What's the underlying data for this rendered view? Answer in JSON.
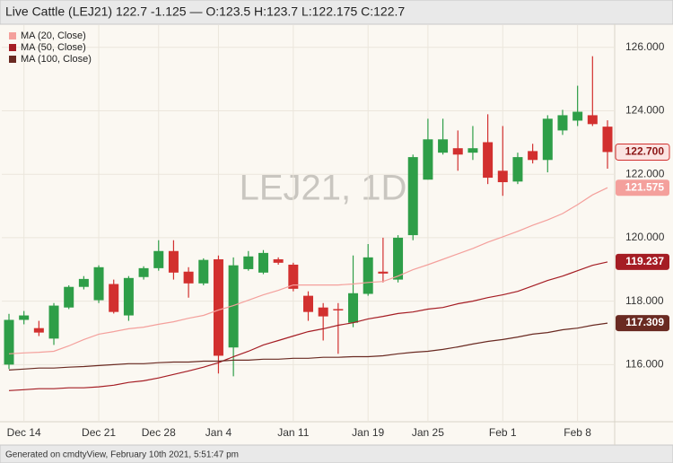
{
  "chart_data": {
    "type": "candlestick",
    "title": "Live Cattle (LEJ21) 122.7 -1.125 — O:123.5 H:123.7 L:122.175 C:122.7",
    "watermark": "LEJ21, 1D",
    "footer": "Generated on cmdtyView, February 10th 2021, 5:51:47 pm",
    "categories": [
      null,
      "Dec 14",
      null,
      null,
      null,
      null,
      "Dec 21",
      null,
      null,
      null,
      "Dec 28",
      null,
      null,
      null,
      "Jan 4",
      null,
      null,
      null,
      null,
      "Jan 11",
      null,
      null,
      null,
      null,
      "Jan 19",
      null,
      null,
      null,
      "Jan 25",
      null,
      null,
      null,
      null,
      "Feb 1",
      null,
      null,
      null,
      null,
      "Feb 8",
      null,
      null
    ],
    "ohlc": {
      "open": [
        116.0,
        117.41,
        117.15,
        116.82,
        117.8,
        118.45,
        118.03,
        118.54,
        117.55,
        118.76,
        119.04,
        119.58,
        118.93,
        118.56,
        119.32,
        116.54,
        119.01,
        118.9,
        119.32,
        119.15,
        118.17,
        117.8,
        117.75,
        117.32,
        118.23,
        118.93,
        118.68,
        120.08,
        121.83,
        122.68,
        122.82,
        122.68,
        123.01,
        122.11,
        121.77,
        122.73,
        122.45,
        123.38,
        123.69,
        123.86,
        123.5
      ],
      "high": [
        117.6,
        117.69,
        117.38,
        117.94,
        118.5,
        118.79,
        119.13,
        118.68,
        118.79,
        119.1,
        119.92,
        119.92,
        119.07,
        119.35,
        119.44,
        119.38,
        119.58,
        119.61,
        119.38,
        119.21,
        118.31,
        117.94,
        117.94,
        119.44,
        119.8,
        120.0,
        120.08,
        122.62,
        123.75,
        123.75,
        123.38,
        123.52,
        123.89,
        123.52,
        122.68,
        122.96,
        123.86,
        124.03,
        124.79,
        125.72,
        123.7
      ],
      "low": [
        115.86,
        117.27,
        116.9,
        116.62,
        117.75,
        118.37,
        117.94,
        117.61,
        117.38,
        118.68,
        118.96,
        118.68,
        118.11,
        118.5,
        115.72,
        115.63,
        118.96,
        118.85,
        119.15,
        118.31,
        117.38,
        116.76,
        116.34,
        117.18,
        118.17,
        118.59,
        118.59,
        119.92,
        121.83,
        122.62,
        122.11,
        122.45,
        121.69,
        121.32,
        121.69,
        122.34,
        122.06,
        123.24,
        123.52,
        123.52,
        122.175
      ],
      "close": [
        117.41,
        117.55,
        117.01,
        117.86,
        118.45,
        118.7,
        119.07,
        117.66,
        118.73,
        119.04,
        119.58,
        118.9,
        118.56,
        119.3,
        116.28,
        119.13,
        119.41,
        119.52,
        119.21,
        118.39,
        117.66,
        117.52,
        117.72,
        118.25,
        119.38,
        118.87,
        120.0,
        122.54,
        123.1,
        123.1,
        122.62,
        122.82,
        121.89,
        121.75,
        122.54,
        122.45,
        123.75,
        123.86,
        123.97,
        123.58,
        122.7
      ],
      "last_label": "122.700"
    },
    "up_color": "#2e9e48",
    "down_color": "#d2302f",
    "series": [
      {
        "name": "MA (20, Close)",
        "color": "#f4a09c",
        "values": [
          116.34,
          116.37,
          116.39,
          116.42,
          116.59,
          116.79,
          116.96,
          117.04,
          117.13,
          117.18,
          117.27,
          117.35,
          117.46,
          117.55,
          117.72,
          117.86,
          118.03,
          118.2,
          118.34,
          118.51,
          118.51,
          118.51,
          118.51,
          118.54,
          118.59,
          118.62,
          118.79,
          118.99,
          119.15,
          119.32,
          119.49,
          119.66,
          119.86,
          120.03,
          120.2,
          120.39,
          120.56,
          120.76,
          121.04,
          121.35,
          121.575
        ]
      },
      {
        "name": "MA (50, Close)",
        "color": "#a51d24",
        "values": [
          115.18,
          115.21,
          115.24,
          115.24,
          115.27,
          115.27,
          115.3,
          115.35,
          115.44,
          115.49,
          115.58,
          115.69,
          115.8,
          115.92,
          116.06,
          116.25,
          116.42,
          116.62,
          116.76,
          116.9,
          117.04,
          117.13,
          117.24,
          117.32,
          117.44,
          117.52,
          117.61,
          117.66,
          117.75,
          117.8,
          117.92,
          118.0,
          118.11,
          118.2,
          118.31,
          118.48,
          118.65,
          118.79,
          118.96,
          119.13,
          119.237
        ]
      },
      {
        "name": "MA (100, Close)",
        "color": "#6a2a22",
        "values": [
          115.83,
          115.86,
          115.89,
          115.89,
          115.92,
          115.94,
          115.97,
          116.0,
          116.03,
          116.03,
          116.06,
          116.08,
          116.08,
          116.11,
          116.11,
          116.14,
          116.14,
          116.17,
          116.17,
          116.2,
          116.2,
          116.23,
          116.23,
          116.25,
          116.25,
          116.28,
          116.34,
          116.39,
          116.42,
          116.48,
          116.56,
          116.65,
          116.73,
          116.79,
          116.87,
          116.96,
          117.01,
          117.1,
          117.15,
          117.24,
          117.309
        ]
      }
    ],
    "ylim": [
      114.2,
      126.7
    ],
    "yticks": [
      {
        "value": 116,
        "label": "116.000"
      },
      {
        "value": 118,
        "label": "118.000"
      },
      {
        "value": 120,
        "label": "120.000"
      },
      {
        "value": 122,
        "label": "122.000"
      },
      {
        "value": 124,
        "label": "124.000"
      },
      {
        "value": 126,
        "label": "126.000"
      }
    ],
    "grid": true
  }
}
